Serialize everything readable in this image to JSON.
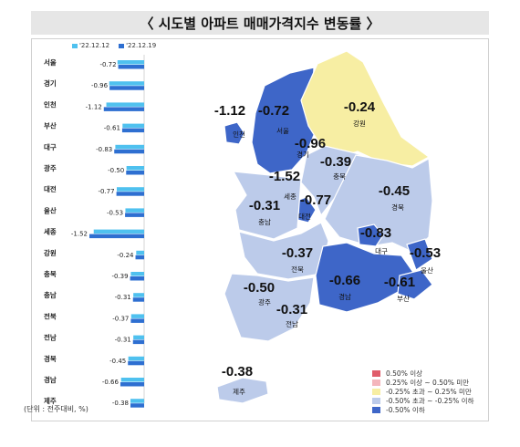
{
  "title": "〈 시도별 아파트 매매가격지수 변동률 〉",
  "unit_note": "(단위 : 전주대비, %)",
  "chart_data": [
    {
      "type": "bar",
      "orientation": "horizontal",
      "categories": [
        "서울",
        "경기",
        "인천",
        "부산",
        "대구",
        "광주",
        "대전",
        "울산",
        "세종",
        "강원",
        "충북",
        "충남",
        "전북",
        "전남",
        "경북",
        "경남",
        "제주"
      ],
      "series": [
        {
          "name": "'22.12.12",
          "color": "#4fc1ef",
          "values": [
            -0.74,
            -0.97,
            -1.05,
            -0.6,
            -0.8,
            -0.49,
            -0.76,
            -0.52,
            -1.4,
            -0.22,
            -0.37,
            -0.3,
            -0.36,
            -0.3,
            -0.44,
            -0.64,
            -0.38
          ]
        },
        {
          "name": "'22.12.19",
          "color": "#2e6fd1",
          "values": [
            -0.72,
            -0.96,
            -1.12,
            -0.61,
            -0.83,
            -0.5,
            -0.77,
            -0.53,
            -1.52,
            -0.24,
            -0.39,
            -0.31,
            -0.37,
            -0.31,
            -0.45,
            -0.66,
            -0.38
          ]
        }
      ],
      "data_labels": [
        "-0.72",
        "-0.96",
        "-1.12",
        "-0.61",
        "-0.83",
        "-0.50",
        "-0.77",
        "-0.53",
        "-1.52",
        "-0.24",
        "-0.39",
        "-0.31",
        "-0.37",
        "-0.31",
        "-0.45",
        "-0.66",
        "-0.38"
      ],
      "xlim": [
        -1.6,
        0
      ]
    },
    {
      "type": "choropleth-map",
      "regions": [
        {
          "name": "서울",
          "value": "-0.72",
          "band": 4
        },
        {
          "name": "경기",
          "value": "-0.96",
          "band": 4
        },
        {
          "name": "인천",
          "value": "-1.12",
          "band": 4
        },
        {
          "name": "강원",
          "value": "-0.24",
          "band": 2
        },
        {
          "name": "충북",
          "value": "-0.39",
          "band": 3
        },
        {
          "name": "세종",
          "value": "-1.52",
          "band": 4
        },
        {
          "name": "대전",
          "value": "-0.77",
          "band": 4
        },
        {
          "name": "충남",
          "value": "-0.31",
          "band": 3
        },
        {
          "name": "경북",
          "value": "-0.45",
          "band": 3
        },
        {
          "name": "대구",
          "value": "-0.83",
          "band": 4
        },
        {
          "name": "울산",
          "value": "-0.53",
          "band": 4
        },
        {
          "name": "전북",
          "value": "-0.37",
          "band": 3
        },
        {
          "name": "광주",
          "value": "-0.50",
          "band": 4
        },
        {
          "name": "전남",
          "value": "-0.31",
          "band": 3
        },
        {
          "name": "경남",
          "value": "-0.66",
          "band": 4
        },
        {
          "name": "부산",
          "value": "-0.61",
          "band": 4
        },
        {
          "name": "제주",
          "value": "-0.38",
          "band": 3
        }
      ],
      "legend": [
        {
          "label": "0.50% 이상",
          "color": "#e05c6a"
        },
        {
          "label": "0.25% 이상 ~ 0.50% 미만",
          "color": "#f4b6bc"
        },
        {
          "label": "-0.25% 초과 ~ 0.25% 미만",
          "color": "#f7eea3"
        },
        {
          "label": "-0.50% 초과 ~ -0.25% 이하",
          "color": "#bccbea"
        },
        {
          "label": "-0.50% 이하",
          "color": "#3e66c8"
        }
      ]
    }
  ]
}
